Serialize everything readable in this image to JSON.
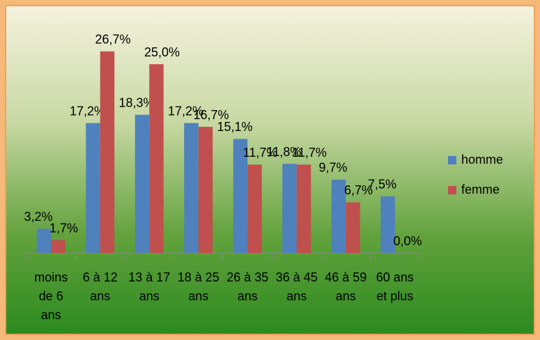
{
  "chart_data": {
    "type": "bar",
    "categories": [
      "moins de 6 ans",
      "6 à 12 ans",
      "13 à 17 ans",
      "18 à 25 ans",
      "26 à 35 ans",
      "36 à 45 ans",
      "46 à 59 ans",
      "60 ans et plus"
    ],
    "series": [
      {
        "name": "homme",
        "color": "#4f81bd",
        "values": [
          3.2,
          17.2,
          18.3,
          17.2,
          15.1,
          11.8,
          9.7,
          7.5
        ],
        "value_labels": [
          "3,2%",
          "17,2%",
          "18,3%",
          "17,2%",
          "15,1%",
          "11,8%",
          "9,7%",
          "7,5%"
        ]
      },
      {
        "name": "femme",
        "color": "#c0504d",
        "values": [
          1.7,
          26.7,
          25.0,
          16.7,
          11.7,
          11.7,
          6.7,
          0.0
        ],
        "value_labels": [
          "1,7%",
          "26,7%",
          "25,0%",
          "16,7%",
          "11,7%",
          "11,7%",
          "6,7%",
          "0,0%"
        ]
      }
    ],
    "ylim": [
      0,
      30
    ],
    "legend": "right"
  }
}
